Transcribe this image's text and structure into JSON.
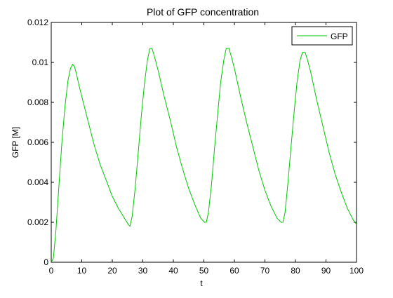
{
  "chart_data": {
    "type": "line",
    "title": "Plot of GFP concentration",
    "xlabel": "t",
    "ylabel": "GFP [M]",
    "xlim": [
      0,
      100
    ],
    "ylim": [
      0,
      0.012
    ],
    "xticks": [
      0,
      10,
      20,
      30,
      40,
      50,
      60,
      70,
      80,
      90,
      100
    ],
    "xtick_labels": [
      "0",
      "10",
      "20",
      "30",
      "40",
      "50",
      "60",
      "70",
      "80",
      "90",
      "100"
    ],
    "yticks": [
      0,
      0.002,
      0.004,
      0.006,
      0.008,
      0.01,
      0.012
    ],
    "ytick_labels": [
      "0",
      "0.002",
      "0.004",
      "0.006",
      "0.008",
      "0.01",
      "0.012"
    ],
    "grid": false,
    "legend_position": "top-right",
    "series": [
      {
        "name": "GFP",
        "color": "#00c800",
        "x": [
          0,
          0.7,
          1.5,
          2.5,
          3.5,
          4.5,
          5.5,
          6.3,
          7.0,
          7.6,
          8.3,
          9.0,
          10,
          12,
          14,
          16,
          18,
          20,
          22,
          24,
          25.2,
          25.8,
          26.5,
          27.5,
          28.5,
          29.5,
          30.5,
          31.5,
          32.3,
          33.0,
          33.8,
          35,
          37,
          39,
          41,
          43,
          45,
          47,
          49,
          50.2,
          50.8,
          51.5,
          52.5,
          53.5,
          54.5,
          55.5,
          56.5,
          57.3,
          58.2,
          59,
          60,
          62,
          64,
          66,
          68,
          70,
          72,
          74,
          75.3,
          75.9,
          76.6,
          77.5,
          78.5,
          79.5,
          80.5,
          81.5,
          82.3,
          83.2,
          84,
          85,
          87,
          89,
          91,
          93,
          95,
          97,
          99,
          100
        ],
        "y": [
          0,
          0.0002,
          0.0015,
          0.0038,
          0.006,
          0.0078,
          0.0091,
          0.0097,
          0.0099,
          0.0098,
          0.0094,
          0.0089,
          0.0083,
          0.0071,
          0.0059,
          0.0049,
          0.0041,
          0.0033,
          0.0027,
          0.0022,
          0.0019,
          0.0018,
          0.0023,
          0.0037,
          0.0055,
          0.0073,
          0.0089,
          0.0101,
          0.0107,
          0.0107,
          0.0103,
          0.0096,
          0.0083,
          0.0071,
          0.0058,
          0.0047,
          0.0037,
          0.0029,
          0.0022,
          0.002,
          0.002,
          0.0025,
          0.0039,
          0.0057,
          0.0074,
          0.009,
          0.0101,
          0.0107,
          0.0107,
          0.0103,
          0.0097,
          0.0083,
          0.007,
          0.0058,
          0.0046,
          0.0036,
          0.0028,
          0.0022,
          0.002,
          0.002,
          0.0025,
          0.0039,
          0.0057,
          0.0074,
          0.009,
          0.0101,
          0.0105,
          0.0105,
          0.0101,
          0.0095,
          0.0081,
          0.0068,
          0.0055,
          0.0044,
          0.0035,
          0.0027,
          0.0021,
          0.0019
        ]
      }
    ]
  }
}
